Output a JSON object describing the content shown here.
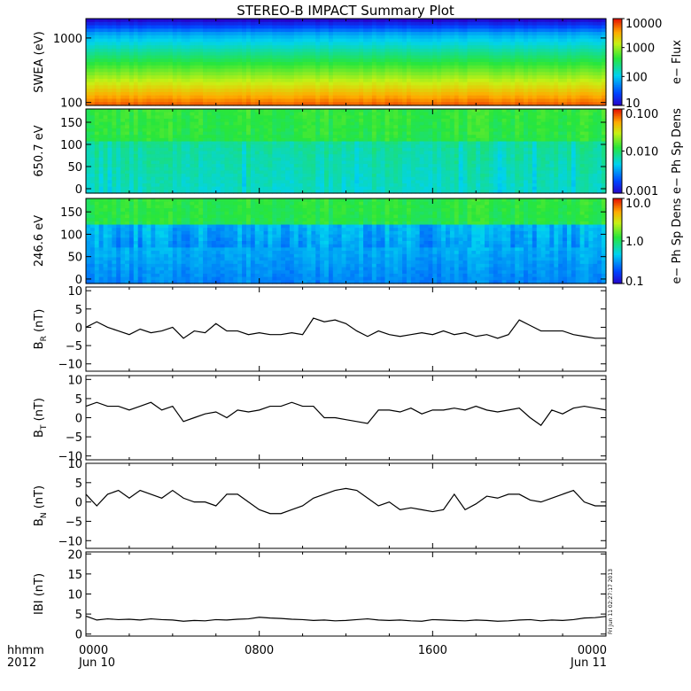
{
  "title": "STEREO-B IMPACT Summary Plot",
  "x_axis": {
    "left_labels": [
      "hhmm",
      "2012"
    ],
    "ticks": [
      {
        "hour": 0,
        "label": "0000",
        "date": "Jun 10"
      },
      {
        "hour": 8,
        "label": "0800",
        "date": ""
      },
      {
        "hour": 16,
        "label": "1600",
        "date": ""
      },
      {
        "hour": 24,
        "label": "0000",
        "date": "Jun 11"
      }
    ]
  },
  "stamp": "Fri Jun 11 02:27:17 2013",
  "chart_data": [
    {
      "id": "swea",
      "type": "heatmap",
      "ylabel": "SWEA (eV)",
      "yscale": "log",
      "ylim": [
        90,
        2000
      ],
      "yticks": [
        {
          "v": 100,
          "label": "100"
        },
        {
          "v": 1000,
          "label": "1000"
        }
      ],
      "colorbar": {
        "label": "e− Flux",
        "scale": "log",
        "range": [
          10,
          10000
        ],
        "ticks": [
          {
            "v": 10,
            "label": "10"
          },
          {
            "v": 100,
            "label": "100"
          },
          {
            "v": 1000,
            "label": "1000"
          },
          {
            "v": 10000,
            "label": "10000"
          }
        ]
      }
    },
    {
      "id": "pad650",
      "type": "heatmap",
      "ylabel": "650.7 eV",
      "ylim": [
        -10,
        180
      ],
      "yticks": [
        {
          "v": 0,
          "label": "0"
        },
        {
          "v": 50,
          "label": "50"
        },
        {
          "v": 100,
          "label": "100"
        },
        {
          "v": 150,
          "label": "150"
        }
      ],
      "colorbar": {
        "label": "e− Ph Sp Dens",
        "scale": "log",
        "range": [
          0.001,
          0.1
        ],
        "ticks": [
          {
            "v": 0.001,
            "label": "0.001"
          },
          {
            "v": 0.01,
            "label": "0.010"
          },
          {
            "v": 0.1,
            "label": "0.100"
          }
        ]
      }
    },
    {
      "id": "pad246",
      "type": "heatmap",
      "ylabel": "246.6 eV",
      "ylim": [
        -10,
        180
      ],
      "yticks": [
        {
          "v": 0,
          "label": "0"
        },
        {
          "v": 50,
          "label": "50"
        },
        {
          "v": 100,
          "label": "100"
        },
        {
          "v": 150,
          "label": "150"
        }
      ],
      "colorbar": {
        "label": "e− Ph Sp Dens",
        "scale": "log",
        "range": [
          0.1,
          10
        ],
        "ticks": [
          {
            "v": 0.1,
            "label": "0.1"
          },
          {
            "v": 1,
            "label": "1.0"
          },
          {
            "v": 10,
            "label": "10.0"
          }
        ]
      }
    },
    {
      "id": "br",
      "type": "line",
      "ylabel": "B",
      "ylabel_sub": "R",
      "ylabel_unit": "(nT)",
      "ylim": [
        -12,
        11
      ],
      "yticks": [
        {
          "v": -10,
          "label": "−10"
        },
        {
          "v": -5,
          "label": "−5"
        },
        {
          "v": 0,
          "label": "0"
        },
        {
          "v": 5,
          "label": "5"
        },
        {
          "v": 10,
          "label": "10"
        }
      ],
      "x_hours": [
        0,
        0.5,
        1,
        1.5,
        2,
        2.5,
        3,
        3.5,
        4,
        4.5,
        5,
        5.5,
        6,
        6.5,
        7,
        7.5,
        8,
        8.5,
        9,
        9.5,
        10,
        10.5,
        11,
        11.5,
        12,
        12.5,
        13,
        13.5,
        14,
        14.5,
        15,
        15.5,
        16,
        16.5,
        17,
        17.5,
        18,
        18.5,
        19,
        19.5,
        20,
        20.5,
        21,
        21.5,
        22,
        22.5,
        23,
        23.5,
        24
      ],
      "y": [
        0,
        1.5,
        0,
        -1,
        -2,
        -0.5,
        -1.5,
        -1,
        0,
        -3,
        -1,
        -1.5,
        1,
        -1,
        -1,
        -2,
        -1.5,
        -2,
        -2,
        -1.5,
        -2,
        2.5,
        1.5,
        2,
        1,
        -1,
        -2.5,
        -1,
        -2,
        -2.5,
        -2,
        -1.5,
        -2,
        -1,
        -2,
        -1.5,
        -2.5,
        -2,
        -3,
        -2,
        2,
        0.5,
        -1,
        -1,
        -1,
        -2,
        -2.5,
        -3,
        -3
      ]
    },
    {
      "id": "bt",
      "type": "line",
      "ylabel": "B",
      "ylabel_sub": "T",
      "ylabel_unit": "(nT)",
      "ylim": [
        -11,
        11
      ],
      "yticks": [
        {
          "v": -10,
          "label": "−10"
        },
        {
          "v": -5,
          "label": "−5"
        },
        {
          "v": 0,
          "label": "0"
        },
        {
          "v": 5,
          "label": "5"
        },
        {
          "v": 10,
          "label": "10"
        }
      ],
      "x_hours": [
        0,
        0.5,
        1,
        1.5,
        2,
        2.5,
        3,
        3.5,
        4,
        4.5,
        5,
        5.5,
        6,
        6.5,
        7,
        7.5,
        8,
        8.5,
        9,
        9.5,
        10,
        10.5,
        11,
        11.5,
        12,
        12.5,
        13,
        13.5,
        14,
        14.5,
        15,
        15.5,
        16,
        16.5,
        17,
        17.5,
        18,
        18.5,
        19,
        19.5,
        20,
        20.5,
        21,
        21.5,
        22,
        22.5,
        23,
        23.5,
        24
      ],
      "y": [
        3,
        4,
        3,
        3,
        2,
        3,
        4,
        2,
        3,
        -1,
        0,
        1,
        1.5,
        0,
        2,
        1.5,
        2,
        3,
        3,
        4,
        3,
        3,
        0,
        0,
        -0.5,
        -1,
        -1.5,
        2,
        2,
        1.5,
        2.5,
        1,
        2,
        2,
        2.5,
        2,
        3,
        2,
        1.5,
        2,
        2.5,
        0,
        -2,
        2,
        1,
        2.5,
        3,
        2.5,
        2
      ]
    },
    {
      "id": "bn",
      "type": "line",
      "ylabel": "B",
      "ylabel_sub": "N",
      "ylabel_unit": "(nT)",
      "ylim": [
        -12,
        10
      ],
      "yticks": [
        {
          "v": -10,
          "label": "−10"
        },
        {
          "v": -5,
          "label": "−5"
        },
        {
          "v": 0,
          "label": "0"
        },
        {
          "v": 5,
          "label": "5"
        },
        {
          "v": 10,
          "label": "10"
        }
      ],
      "x_hours": [
        0,
        0.5,
        1,
        1.5,
        2,
        2.5,
        3,
        3.5,
        4,
        4.5,
        5,
        5.5,
        6,
        6.5,
        7,
        7.5,
        8,
        8.5,
        9,
        9.5,
        10,
        10.5,
        11,
        11.5,
        12,
        12.5,
        13,
        13.5,
        14,
        14.5,
        15,
        15.5,
        16,
        16.5,
        17,
        17.5,
        18,
        18.5,
        19,
        19.5,
        20,
        20.5,
        21,
        21.5,
        22,
        22.5,
        23,
        23.5,
        24
      ],
      "y": [
        2,
        -1,
        2,
        3,
        1,
        3,
        2,
        1,
        3,
        1,
        0,
        0,
        -1,
        2,
        2,
        0,
        -2,
        -3,
        -3,
        -2,
        -1,
        1,
        2,
        3,
        3.5,
        3,
        1,
        -1,
        0,
        -2,
        -1.5,
        -2,
        -2.5,
        -2,
        2,
        -2,
        -0.5,
        1.5,
        1,
        2,
        2,
        0.5,
        0,
        1,
        2,
        3,
        0,
        -1,
        -1
      ]
    },
    {
      "id": "bmag",
      "type": "line",
      "ylabel": "IBI (nT)",
      "ylim": [
        -0.5,
        20.5
      ],
      "yticks": [
        {
          "v": 0,
          "label": "0"
        },
        {
          "v": 5,
          "label": "5"
        },
        {
          "v": 10,
          "label": "10"
        },
        {
          "v": 15,
          "label": "15"
        },
        {
          "v": 20,
          "label": "20"
        }
      ],
      "x_hours": [
        0,
        0.5,
        1,
        1.5,
        2,
        2.5,
        3,
        3.5,
        4,
        4.5,
        5,
        5.5,
        6,
        6.5,
        7,
        7.5,
        8,
        8.5,
        9,
        9.5,
        10,
        10.5,
        11,
        11.5,
        12,
        12.5,
        13,
        13.5,
        14,
        14.5,
        15,
        15.5,
        16,
        16.5,
        17,
        17.5,
        18,
        18.5,
        19,
        19.5,
        20,
        20.5,
        21,
        21.5,
        22,
        22.5,
        23,
        23.5,
        24
      ],
      "y": [
        4.5,
        3.5,
        3.8,
        3.6,
        3.7,
        3.5,
        3.8,
        3.6,
        3.5,
        3.2,
        3.4,
        3.3,
        3.6,
        3.5,
        3.7,
        3.8,
        4.2,
        4,
        3.9,
        3.7,
        3.6,
        3.4,
        3.5,
        3.3,
        3.4,
        3.6,
        3.8,
        3.5,
        3.4,
        3.5,
        3.3,
        3.2,
        3.6,
        3.5,
        3.4,
        3.3,
        3.5,
        3.4,
        3.2,
        3.3,
        3.5,
        3.6,
        3.3,
        3.5,
        3.4,
        3.6,
        4,
        4.1,
        4.4
      ]
    }
  ]
}
